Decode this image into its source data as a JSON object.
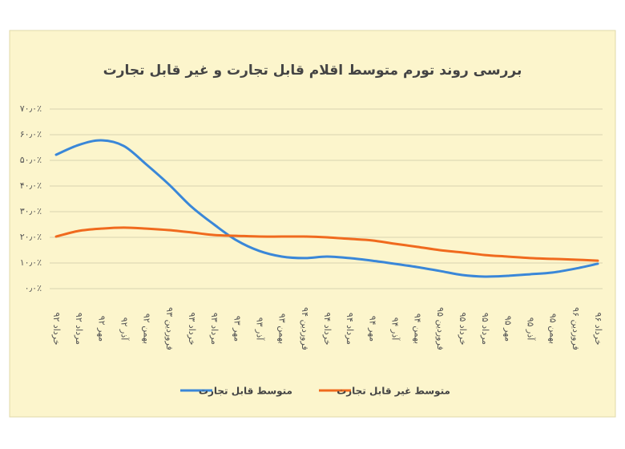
{
  "chart_data": {
    "type": "line",
    "title": "بررسی روند تورم متوسط اقلام قابل تجارت و غیر قابل تجارت",
    "categories": [
      "خرداد ۹۲",
      "مرداد ۹۲",
      "مهر ۹۲",
      "آذر ۹۲",
      "بهمن ۹۲",
      "فروردین ۹۳",
      "خرداد ۹۳",
      "مرداد ۹۳",
      "مهر ۹۳",
      "آذر ۹۳",
      "بهمن ۹۳",
      "فروردین ۹۴",
      "خرداد ۹۴",
      "مرداد ۹۴",
      "مهر ۹۴",
      "آذر ۹۴",
      "بهمن ۹۴",
      "فروردین ۹۵",
      "خرداد ۹۵",
      "مرداد ۹۵",
      "مهر ۹۵",
      "آذر ۹۵",
      "بهمن ۹۵",
      "فروردین ۹۶",
      "خرداد ۹۶"
    ],
    "series": [
      {
        "name": "متوسط قابل تجارت",
        "color": "#3a87d8",
        "values": [
          52.2,
          56,
          57.8,
          55.6,
          48.4,
          40.6,
          31.9,
          25,
          18.8,
          14.7,
          12.5,
          11.9,
          12.5,
          11.9,
          10.9,
          9.7,
          8.4,
          6.9,
          5.3,
          4.7,
          5,
          5.6,
          6.3,
          7.8,
          9.7
        ]
      },
      {
        "name": "متوسط غیر قابل تجارت",
        "color": "#f06a1e",
        "values": [
          20.3,
          22.5,
          23.4,
          23.8,
          23.4,
          22.8,
          21.9,
          20.9,
          20.6,
          20.3,
          20.3,
          20.3,
          20,
          19.4,
          18.8,
          17.5,
          16.3,
          15,
          14.1,
          13.1,
          12.5,
          11.9,
          11.6,
          11.3,
          10.9
        ]
      }
    ],
    "ylim": [
      0,
      70
    ],
    "yticks": [
      {
        "value": 0,
        "label": "۰٫۰٪"
      },
      {
        "value": 10,
        "label": "۱۰٫۰٪"
      },
      {
        "value": 20,
        "label": "۲۰٫۰٪"
      },
      {
        "value": 30,
        "label": "۳۰٫۰٪"
      },
      {
        "value": 40,
        "label": "۴۰٫۰٪"
      },
      {
        "value": 50,
        "label": "۵۰٫۰٪"
      },
      {
        "value": 60,
        "label": "۶۰٫۰٪"
      },
      {
        "value": 70,
        "label": "۷۰٫۰٪"
      }
    ],
    "grid": true
  }
}
